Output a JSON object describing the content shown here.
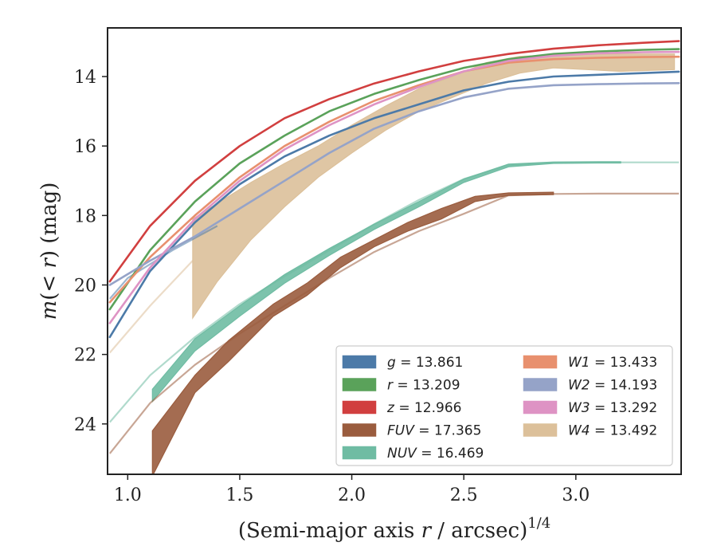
{
  "chart_data": {
    "type": "line",
    "xlabel": "(Semi-major axis r / arcsec)",
    "xlabel_parts": {
      "pre": "(Semi-major axis ",
      "var": "r",
      "post": " / arcsec)",
      "sup": "1/4"
    },
    "ylabel_parts": {
      "func": "m",
      "open": "(< ",
      "var": "r",
      "close": ")",
      "unit": " (mag)"
    },
    "xlim": [
      0.91,
      3.47
    ],
    "ylim": [
      25.45,
      12.6
    ],
    "y_inverted": true,
    "xticks": [
      1.0,
      1.5,
      2.0,
      2.5,
      3.0
    ],
    "xtick_labels": [
      "1.0",
      "1.5",
      "2.0",
      "2.5",
      "3.0"
    ],
    "yticks": [
      14,
      16,
      18,
      20,
      22,
      24
    ],
    "ytick_labels": [
      "14",
      "16",
      "18",
      "20",
      "22",
      "24"
    ],
    "grid": false,
    "legend_position": "lower-right",
    "legend_columns": 2,
    "series": [
      {
        "name": "g",
        "label_var": "g",
        "label_value": "= 13.861",
        "color": "#4c7aa8",
        "kind": "line",
        "x": [
          0.92,
          1.1,
          1.3,
          1.5,
          1.7,
          1.9,
          2.1,
          2.3,
          2.5,
          2.7,
          2.9,
          3.1,
          3.3,
          3.46
        ],
        "y": [
          21.5,
          19.6,
          18.2,
          17.1,
          16.3,
          15.7,
          15.2,
          14.8,
          14.4,
          14.15,
          14.0,
          13.95,
          13.9,
          13.86
        ],
        "ext_x": [
          0.92,
          1.0,
          1.2,
          1.4
        ],
        "ext_y": [
          20.4,
          19.8,
          19.0,
          18.3
        ]
      },
      {
        "name": "r",
        "label_var": "r",
        "label_value": "= 13.209",
        "color": "#5aa25a",
        "kind": "line",
        "x": [
          0.92,
          1.1,
          1.3,
          1.5,
          1.7,
          1.9,
          2.1,
          2.3,
          2.5,
          2.7,
          2.9,
          3.1,
          3.3,
          3.46
        ],
        "y": [
          20.7,
          19.0,
          17.6,
          16.5,
          15.7,
          15.0,
          14.5,
          14.1,
          13.75,
          13.5,
          13.35,
          13.28,
          13.23,
          13.21
        ]
      },
      {
        "name": "z",
        "label_var": "z",
        "label_value": "= 12.966",
        "color": "#d13f3f",
        "kind": "line",
        "x": [
          0.92,
          1.1,
          1.3,
          1.5,
          1.7,
          1.9,
          2.1,
          2.3,
          2.5,
          2.7,
          2.9,
          3.1,
          3.3,
          3.46
        ],
        "y": [
          19.9,
          18.3,
          17.0,
          16.0,
          15.2,
          14.65,
          14.2,
          13.85,
          13.55,
          13.35,
          13.2,
          13.1,
          13.03,
          12.98
        ]
      },
      {
        "name": "FUV",
        "label_var": "FUV",
        "label_value": "= 17.365",
        "color": "#9a5c3e",
        "kind": "band",
        "x": [
          1.11,
          1.3,
          1.45,
          1.65,
          1.8,
          1.95,
          2.1,
          2.25,
          2.4,
          2.55,
          2.7,
          2.9
        ],
        "y_low": [
          25.5,
          23.1,
          22.2,
          20.9,
          20.3,
          19.5,
          18.9,
          18.45,
          18.1,
          17.6,
          17.42,
          17.4
        ],
        "y_high": [
          24.2,
          22.6,
          21.6,
          20.55,
          19.95,
          19.2,
          18.7,
          18.2,
          17.8,
          17.45,
          17.35,
          17.33
        ],
        "ext_x": [
          0.92,
          1.1,
          1.3,
          1.5,
          1.7,
          1.9,
          2.1,
          2.3,
          2.5,
          2.7,
          2.9,
          3.1,
          3.3,
          3.46
        ],
        "ext_y": [
          24.85,
          23.4,
          22.3,
          21.4,
          20.6,
          19.8,
          19.05,
          18.45,
          17.95,
          17.42,
          17.38,
          17.37,
          17.37,
          17.37
        ]
      },
      {
        "name": "NUV",
        "label_var": "NUV",
        "label_value": "= 16.469",
        "color": "#6fbca3",
        "kind": "band",
        "x": [
          1.11,
          1.3,
          1.5,
          1.7,
          1.9,
          2.1,
          2.3,
          2.5,
          2.7,
          2.9,
          3.1,
          3.2
        ],
        "y_low": [
          23.35,
          21.9,
          20.9,
          19.95,
          19.15,
          18.4,
          17.75,
          17.05,
          16.6,
          16.5,
          16.49,
          16.49
        ],
        "y_high": [
          23.0,
          21.55,
          20.6,
          19.7,
          18.95,
          18.25,
          17.6,
          16.95,
          16.52,
          16.46,
          16.45,
          16.45
        ],
        "ext_x": [
          0.92,
          1.1,
          1.3,
          1.5,
          1.7,
          1.9,
          2.1,
          2.3,
          2.5,
          2.7,
          2.9,
          3.1,
          3.3,
          3.46
        ],
        "ext_y": [
          23.95,
          22.6,
          21.5,
          20.55,
          19.75,
          19.0,
          18.25,
          17.55,
          16.95,
          16.55,
          16.48,
          16.47,
          16.47,
          16.47
        ]
      },
      {
        "name": "W1",
        "label_var": "W1",
        "label_value": "= 13.433",
        "color": "#e8906e",
        "kind": "line",
        "x": [
          0.92,
          1.1,
          1.3,
          1.5,
          1.7,
          1.9,
          2.1,
          2.3,
          2.5,
          2.7,
          2.9,
          3.1,
          3.3,
          3.46
        ],
        "y": [
          20.5,
          19.2,
          18.0,
          16.9,
          16.0,
          15.3,
          14.7,
          14.25,
          13.85,
          13.6,
          13.5,
          13.46,
          13.44,
          13.43
        ]
      },
      {
        "name": "W2",
        "label_var": "W2",
        "label_value": "= 14.193",
        "color": "#95a3c8",
        "kind": "line",
        "x": [
          0.92,
          1.1,
          1.3,
          1.5,
          1.7,
          1.9,
          2.1,
          2.3,
          2.5,
          2.7,
          2.9,
          3.1,
          3.3,
          3.46
        ],
        "y": [
          20.0,
          19.3,
          18.6,
          17.8,
          17.0,
          16.2,
          15.5,
          15.0,
          14.6,
          14.35,
          14.25,
          14.22,
          14.2,
          14.19
        ]
      },
      {
        "name": "W3",
        "label_var": "W3",
        "label_value": "= 13.292",
        "color": "#de93c4",
        "kind": "line",
        "x": [
          0.92,
          1.1,
          1.3,
          1.5,
          1.7,
          1.9,
          2.1,
          2.3,
          2.5,
          2.7,
          2.9,
          3.1,
          3.3,
          3.46
        ],
        "y": [
          21.1,
          19.5,
          18.1,
          17.0,
          16.1,
          15.4,
          14.8,
          14.3,
          13.85,
          13.55,
          13.4,
          13.33,
          13.3,
          13.29
        ]
      },
      {
        "name": "W4",
        "label_var": "W4",
        "label_value": "= 13.492",
        "color": "#dcc09a",
        "kind": "band",
        "x": [
          1.29,
          1.4,
          1.55,
          1.7,
          1.85,
          2.0,
          2.15,
          2.3,
          2.45,
          2.6,
          2.75,
          2.9,
          3.05,
          3.2,
          3.44
        ],
        "y_low": [
          20.95,
          19.9,
          18.7,
          17.75,
          16.9,
          16.2,
          15.55,
          15.0,
          14.6,
          14.2,
          13.9,
          13.75,
          13.8,
          13.85,
          13.8
        ],
        "y_high": [
          18.1,
          17.65,
          17.05,
          16.5,
          16.0,
          15.4,
          14.85,
          14.35,
          14.0,
          13.6,
          13.42,
          13.38,
          13.36,
          13.35,
          13.35
        ],
        "ext_x": [
          0.92,
          1.1,
          1.29
        ],
        "ext_y": [
          21.95,
          20.6,
          19.3
        ]
      }
    ]
  }
}
